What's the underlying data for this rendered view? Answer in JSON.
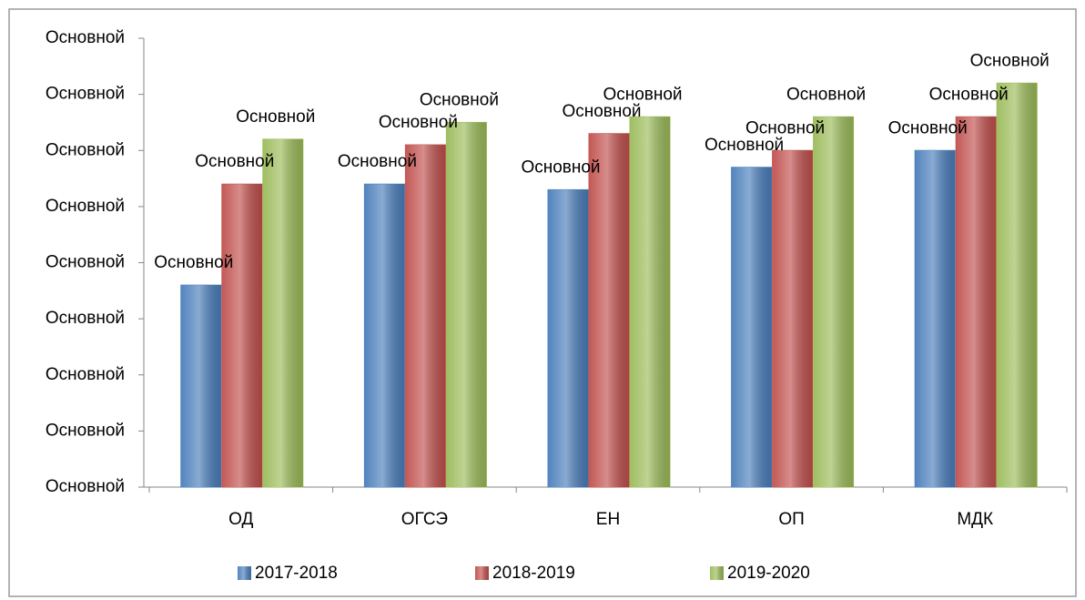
{
  "chart_data": {
    "type": "bar",
    "categories": [
      "ОД",
      "ОГСЭ",
      "ЕН",
      "ОП",
      "МДК"
    ],
    "series": [
      {
        "name": "2017-2018",
        "color": "#4a7ebb",
        "values": [
          1.8,
          2.7,
          2.65,
          2.85,
          3.0
        ],
        "value_labels": [
          "Основной",
          "Основной",
          "Основной",
          "Основной",
          "Основной"
        ]
      },
      {
        "name": "2018-2019",
        "color": "#c0504d",
        "values": [
          2.7,
          3.05,
          3.15,
          3.0,
          3.3
        ],
        "value_labels": [
          "Основной",
          "Основной",
          "Основной",
          "Основной",
          "Основной"
        ]
      },
      {
        "name": "2019-2020",
        "color": "#9bbb59",
        "values": [
          3.1,
          3.25,
          3.3,
          3.3,
          3.6
        ],
        "value_labels": [
          "Основной",
          "Основной",
          "Основной",
          "Основной",
          "Основной"
        ]
      }
    ],
    "ylim": [
      0,
      4
    ],
    "yticks": [
      {
        "value": 0,
        "label": "Основной"
      },
      {
        "value": 0.5,
        "label": "Основной"
      },
      {
        "value": 1,
        "label": "Основной"
      },
      {
        "value": 1.5,
        "label": "Основной"
      },
      {
        "value": 2,
        "label": "Основной"
      },
      {
        "value": 2.5,
        "label": "Основной"
      },
      {
        "value": 3,
        "label": "Основной"
      },
      {
        "value": 3.5,
        "label": "Основной"
      },
      {
        "value": 4,
        "label": "Основной"
      }
    ],
    "grid": false,
    "legend": "bottom"
  }
}
